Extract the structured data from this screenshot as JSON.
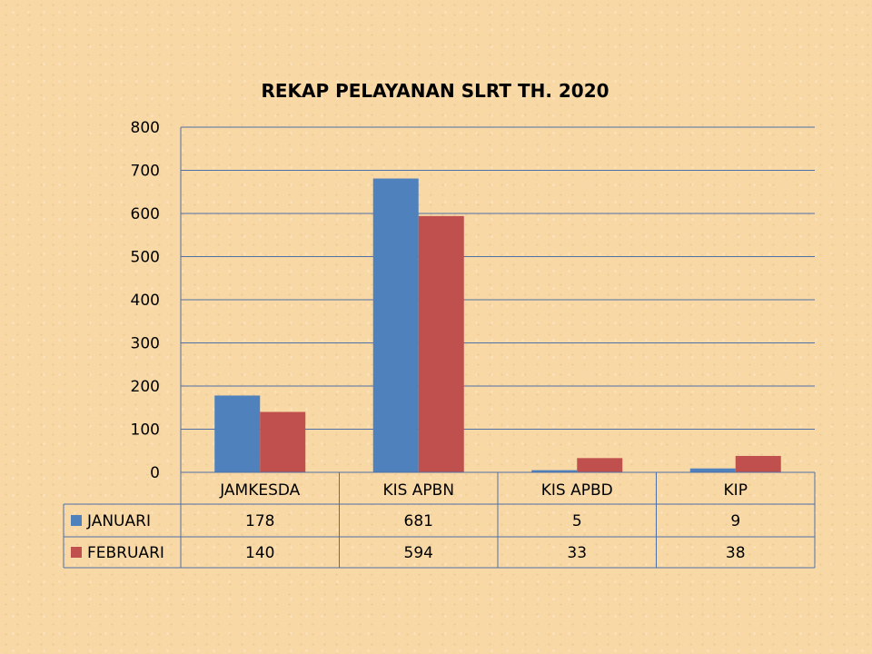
{
  "chart_data": {
    "type": "bar",
    "title": "REKAP PELAYANAN SLRT TH. 2020",
    "categories": [
      "JAMKESDA",
      "KIS APBN",
      "KIS APBD",
      "KIP"
    ],
    "series": [
      {
        "name": "JANUARI",
        "color": "#4f81bd",
        "values": [
          178,
          681,
          5,
          9
        ]
      },
      {
        "name": "FEBRUARI",
        "color": "#c0504d",
        "values": [
          140,
          594,
          33,
          38
        ]
      }
    ],
    "y_ticks": [
      0,
      100,
      200,
      300,
      400,
      500,
      600,
      700,
      800
    ],
    "ylim": [
      0,
      800
    ],
    "grid": true,
    "legend": "data-table"
  },
  "colors": {
    "background": "#f8d9a6",
    "gridline": "#4f6fa8",
    "table_border": "#4f6fa8"
  }
}
